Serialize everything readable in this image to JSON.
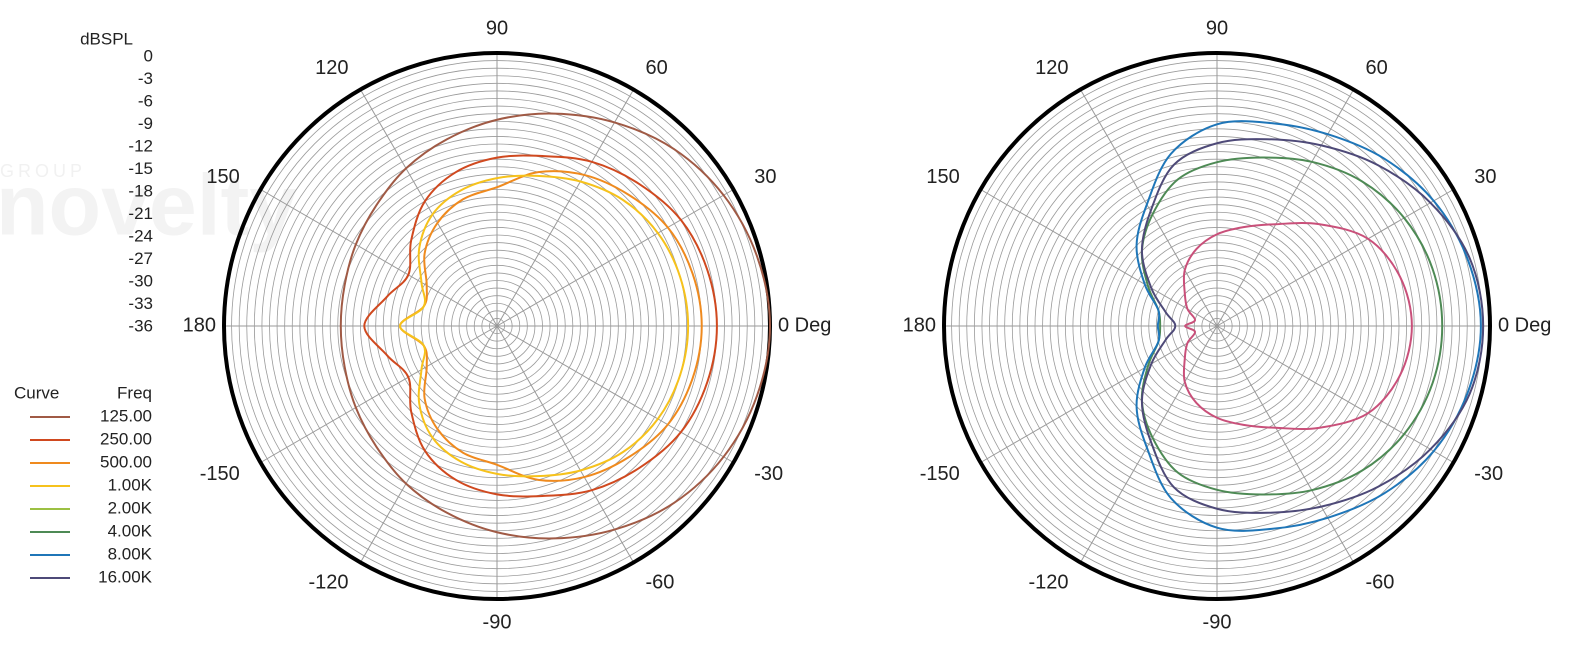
{
  "watermark": {
    "small": "GROUP",
    "large": "novelty"
  },
  "chart_data": [
    {
      "type": "polar",
      "rlabel": "dBSPL",
      "rlim": [
        -36,
        0
      ],
      "rticks": [
        0,
        -3,
        -6,
        -9,
        -12,
        -15,
        -18,
        -21,
        -24,
        -27,
        -30,
        -33,
        -36
      ],
      "legend_title": [
        "Curve",
        "Freq"
      ],
      "thetaticks": [
        {
          "value": 0,
          "label": "0 Deg"
        },
        30,
        60,
        90,
        120,
        150,
        180,
        -150,
        -120,
        -90,
        -60,
        -30
      ],
      "theta": [
        0,
        15,
        30,
        45,
        60,
        75,
        90,
        105,
        120,
        135,
        150,
        165,
        180,
        195,
        210,
        225,
        240,
        255,
        270,
        285,
        300,
        315,
        330,
        345
      ],
      "series": [
        {
          "name": "125.00",
          "color": "#a05a45",
          "values": [
            0,
            -0.5,
            -1.5,
            -3,
            -5,
            -7,
            -8.8,
            -10.5,
            -12,
            -13.5,
            -14.5,
            -15.2,
            -15.4,
            -15.2,
            -14.5,
            -13.5,
            -12,
            -10.5,
            -8.8,
            -7,
            -5,
            -3,
            -1.5,
            -0.5
          ]
        },
        {
          "name": "250.00",
          "color": "#d0491f",
          "values": [
            -7,
            -7.3,
            -8,
            -9.5,
            -11,
            -12.8,
            -13.8,
            -15,
            -17,
            -20,
            -22.5,
            -21,
            -18.5,
            -21,
            -22.5,
            -20,
            -17,
            -15,
            -13.8,
            -12.8,
            -11,
            -9.5,
            -8,
            -7.3
          ]
        },
        {
          "name": "500.00",
          "color": "#ef8a1e",
          "values": [
            -9,
            -9.3,
            -10,
            -11.5,
            -13,
            -15,
            -17.7,
            -18.7,
            -20.3,
            -22.5,
            -25.3,
            -26,
            -23.2,
            -26,
            -25.3,
            -22.5,
            -20.3,
            -18.7,
            -17.7,
            -15,
            -13,
            -11.5,
            -10,
            -9.3
          ]
        },
        {
          "name": "1.00K",
          "color": "#f6c21c",
          "values": [
            -10.8,
            -11,
            -11.5,
            -12.5,
            -14,
            -15.5,
            -16.5,
            -17.5,
            -19,
            -21.5,
            -24.5,
            -26,
            -23.2,
            -26,
            -24.5,
            -21.5,
            -19,
            -17.5,
            -16.5,
            -15.5,
            -14,
            -12.5,
            -11.5,
            -11
          ]
        }
      ]
    },
    {
      "type": "polar",
      "rlim": [
        -36,
        0
      ],
      "thetaticks": [
        {
          "value": 0,
          "label": "0 Deg"
        },
        30,
        60,
        90,
        120,
        150,
        180,
        -150,
        -120,
        -90,
        -60,
        -30
      ],
      "theta": [
        0,
        15,
        30,
        45,
        60,
        75,
        90,
        105,
        120,
        135,
        150,
        165,
        180,
        195,
        210,
        225,
        240,
        255,
        270,
        285,
        300,
        315,
        330,
        345
      ],
      "series": [
        {
          "name": "2.00K",
          "color": "#c9507a",
          "legend_color": "#9cc043",
          "values": [
            -10.3,
            -11,
            -13,
            -17,
            -20.5,
            -22.5,
            -23.9,
            -25.5,
            -27.5,
            -30,
            -31.5,
            -33,
            -31.8,
            -33,
            -31.5,
            -30,
            -27.5,
            -25.5,
            -23.9,
            -22.5,
            -20.5,
            -17,
            -13,
            -11
          ]
        },
        {
          "name": "4.00K",
          "color": "#4e8a55",
          "values": [
            -6.3,
            -6.6,
            -7.5,
            -9,
            -11,
            -13,
            -14.4,
            -16,
            -19,
            -22,
            -25.5,
            -28,
            -28.5,
            -28,
            -25.5,
            -22,
            -19,
            -16,
            -14.4,
            -13,
            -11,
            -9,
            -7.5,
            -6.6
          ]
        },
        {
          "name": "8.00K",
          "color": "#1f76b8",
          "values": [
            -1.2,
            -1.8,
            -3,
            -4.8,
            -6.8,
            -8.3,
            -9.4,
            -12.5,
            -17.5,
            -21,
            -25,
            -28,
            -28.2,
            -28,
            -25,
            -21,
            -17.5,
            -12.5,
            -9.4,
            -8.3,
            -6.8,
            -4.8,
            -3,
            -1.8
          ]
        },
        {
          "name": "16.00K",
          "color": "#4e4a78",
          "values": [
            -0.9,
            -1.5,
            -3.5,
            -6,
            -8.5,
            -10.5,
            -11.9,
            -14,
            -18.5,
            -22,
            -26,
            -29,
            -30.5,
            -29,
            -26,
            -22,
            -18.5,
            -14,
            -11.9,
            -10.5,
            -8.5,
            -6,
            -3.5,
            -1.5
          ]
        }
      ]
    }
  ]
}
